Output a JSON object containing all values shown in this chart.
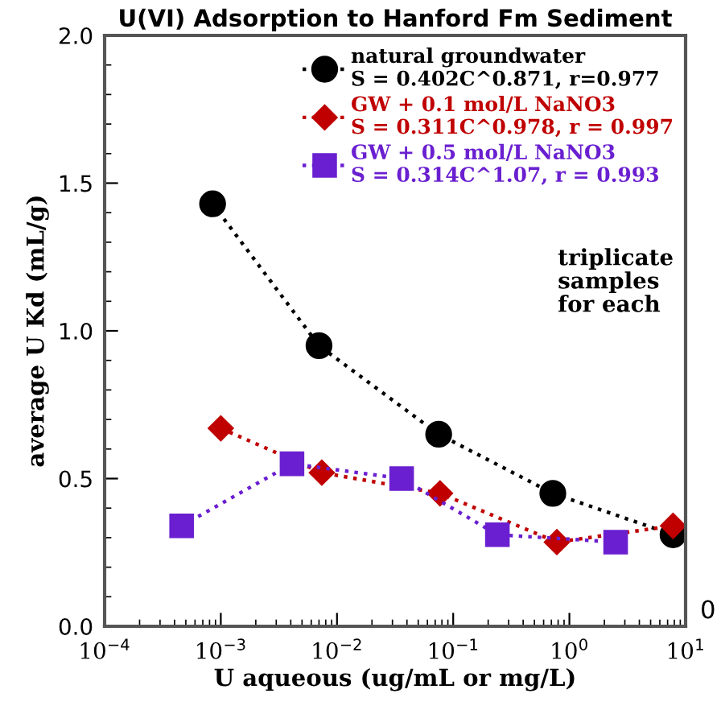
{
  "chart_data": {
    "type": "line",
    "title": "U(VI) Adsorption to Hanford Fm Sediment",
    "xlabel": "U aqueous (ug/mL or mg/L)",
    "ylabel": "average U Kd (mL/g)",
    "log": "x",
    "xlim": [
      0.0001,
      10
    ],
    "ylim": [
      0,
      2.0
    ],
    "xticks": [
      {
        "value": 0.0001,
        "label": "10$^{−4}$"
      },
      {
        "value": 0.001,
        "label": "10$^{−3}$"
      },
      {
        "value": 0.01,
        "label": "10$^{−2}$"
      },
      {
        "value": 0.1,
        "label": "10$^{−1}$"
      },
      {
        "value": 1,
        "label": "10$^{0}$"
      },
      {
        "value": 10,
        "label": "10$^{1}$"
      }
    ],
    "yticks": [
      {
        "value": 0,
        "label": "0.0"
      },
      0.5,
      {
        "value": 1,
        "label": "1.0"
      },
      1.5,
      {
        "value": 2,
        "label": "2.0"
      }
    ],
    "line_style": "dotted",
    "grid": false,
    "legend": "top right",
    "series": [
      {
        "name": "natural groundwater\nS = 0.402C^0.871, r=0.977",
        "color": "#000000",
        "marker": "circle",
        "x": [
          0.00085,
          0.007,
          0.075,
          0.72,
          7.8
        ],
        "values": [
          1.43,
          0.95,
          0.65,
          0.45,
          0.31
        ]
      },
      {
        "name": "GW + 0.1 mol/L NaNO3\nS = 0.311C^0.978, r = 0.997",
        "color": "#c00000",
        "marker": "diamond",
        "x": [
          0.001,
          0.0074,
          0.077,
          0.78,
          7.8
        ],
        "values": [
          0.67,
          0.52,
          0.45,
          0.285,
          0.34
        ]
      },
      {
        "name": "GW + 0.5 mol/L NaNO3\nS = 0.314C^1.07, r = 0.993",
        "color": "#6a1fd0",
        "marker": "square",
        "x": [
          0.00046,
          0.0041,
          0.036,
          0.24,
          2.5
        ],
        "values": [
          0.34,
          0.55,
          0.5,
          0.31,
          0.285
        ]
      }
    ],
    "annotations": [
      "triplicate\nsamples\nfor each",
      "0"
    ]
  }
}
